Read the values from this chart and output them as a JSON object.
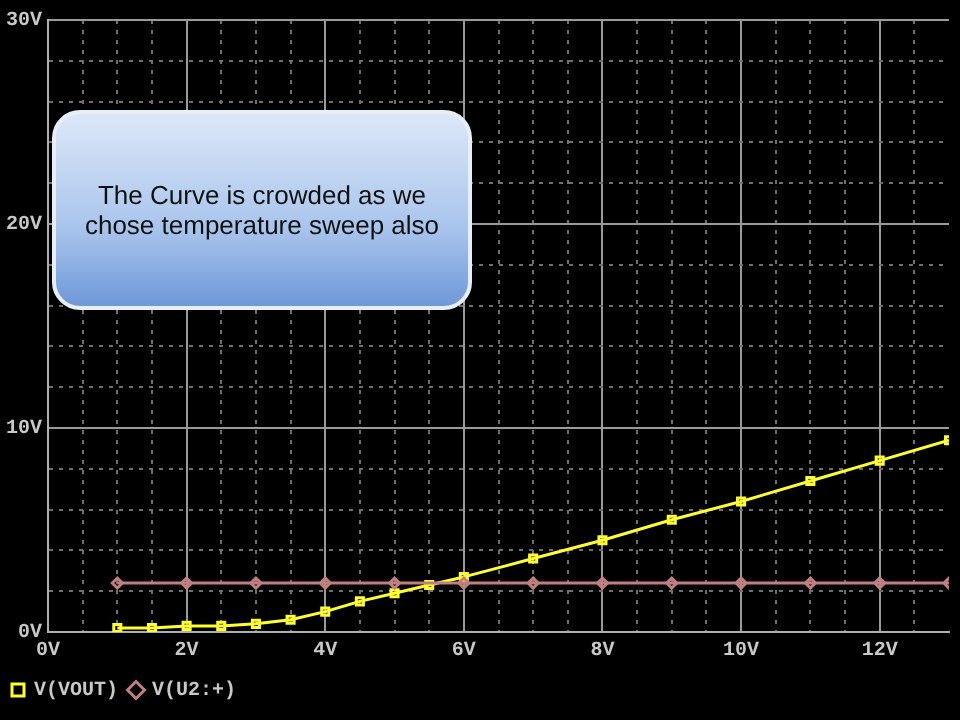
{
  "chart_data": {
    "type": "line",
    "annotations": [
      "The Curve is crowded as we chose temperature sweep also"
    ],
    "xlim": [
      0,
      13
    ],
    "xticks": [
      {
        "value": 0,
        "label": "0V"
      },
      {
        "value": 0.5,
        "label": null
      },
      {
        "value": 1,
        "label": null
      },
      {
        "value": 1.5,
        "label": null
      },
      {
        "value": 2,
        "label": "2V"
      },
      {
        "value": 2.5,
        "label": null
      },
      {
        "value": 3,
        "label": null
      },
      {
        "value": 3.5,
        "label": null
      },
      {
        "value": 4,
        "label": "4V"
      },
      {
        "value": 4.5,
        "label": null
      },
      {
        "value": 5,
        "label": null
      },
      {
        "value": 5.5,
        "label": null
      },
      {
        "value": 6,
        "label": "6V"
      },
      {
        "value": 6.5,
        "label": null
      },
      {
        "value": 7,
        "label": null
      },
      {
        "value": 7.5,
        "label": null
      },
      {
        "value": 8,
        "label": "8V"
      },
      {
        "value": 8.5,
        "label": null
      },
      {
        "value": 9,
        "label": null
      },
      {
        "value": 9.5,
        "label": null
      },
      {
        "value": 10,
        "label": "10V"
      },
      {
        "value": 10.5,
        "label": null
      },
      {
        "value": 11,
        "label": null
      },
      {
        "value": 11.5,
        "label": null
      },
      {
        "value": 12,
        "label": "12V"
      },
      {
        "value": 12.5,
        "label": null
      }
    ],
    "ylim": [
      0,
      30
    ],
    "yticks": [
      {
        "value": 0,
        "label": "0V"
      },
      {
        "value": 2,
        "label": null
      },
      {
        "value": 4,
        "label": null
      },
      {
        "value": 6,
        "label": null
      },
      {
        "value": 8,
        "label": null
      },
      {
        "value": 10,
        "label": "10V"
      },
      {
        "value": 12,
        "label": null
      },
      {
        "value": 14,
        "label": null
      },
      {
        "value": 16,
        "label": null
      },
      {
        "value": 18,
        "label": null
      },
      {
        "value": 20,
        "label": "20V"
      },
      {
        "value": 22,
        "label": null
      },
      {
        "value": 24,
        "label": null
      },
      {
        "value": 26,
        "label": null
      },
      {
        "value": 28,
        "label": null
      },
      {
        "value": 30,
        "label": "30V"
      }
    ],
    "grid": true,
    "legend": "bottom left",
    "series": [
      {
        "name": "V(VOUT)",
        "color": "#ffff33",
        "marker": "square",
        "x": [
          1,
          1.5,
          2,
          2.5,
          3,
          3.5,
          4,
          4.5,
          5,
          5.5,
          6,
          7,
          8,
          9,
          10,
          11,
          12,
          13
        ],
        "values": [
          0.2,
          0.2,
          0.3,
          0.3,
          0.4,
          0.6,
          1.0,
          1.5,
          1.9,
          2.3,
          2.7,
          3.6,
          4.5,
          5.5,
          6.4,
          7.4,
          8.4,
          9.4
        ]
      },
      {
        "name": "V(U2:+)",
        "color": "#c08080",
        "marker": "diamond",
        "x": [
          1,
          2,
          3,
          4,
          5,
          6,
          7,
          8,
          9,
          10,
          11,
          12,
          13
        ],
        "values": [
          2.4,
          2.4,
          2.4,
          2.4,
          2.4,
          2.4,
          2.4,
          2.4,
          2.4,
          2.4,
          2.4,
          2.4,
          2.4
        ]
      }
    ]
  }
}
